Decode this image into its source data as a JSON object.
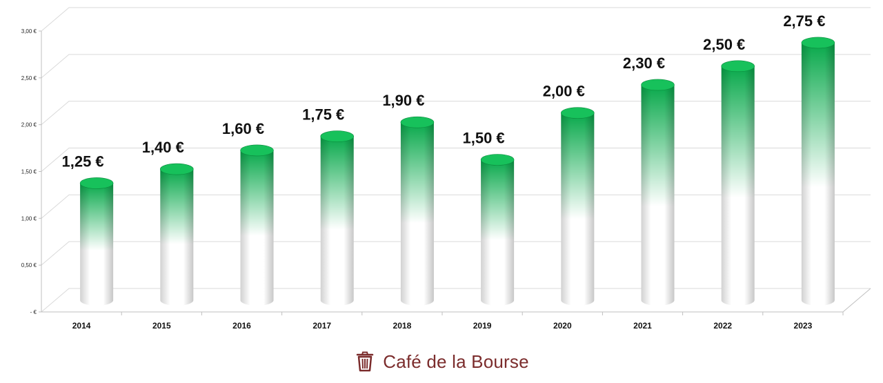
{
  "colors": {
    "bar_top": "#07a84a",
    "bar_cap": "#17c15b",
    "bar_bottom": "#ffffff",
    "brand": "#7b2c2c",
    "grid": "#d9d9d9"
  },
  "brand": {
    "name": "Café de la Bourse",
    "icon": "trash-can-logo-icon"
  },
  "chart_data": {
    "type": "bar",
    "style": "3d-cylinder",
    "categories": [
      "2014",
      "2015",
      "2016",
      "2017",
      "2018",
      "2019",
      "2020",
      "2021",
      "2022",
      "2023"
    ],
    "values": [
      1.25,
      1.4,
      1.6,
      1.75,
      1.9,
      1.5,
      2.0,
      2.3,
      2.5,
      2.75
    ],
    "value_labels": [
      "1,25 €",
      "1,40 €",
      "1,60 €",
      "1,75 €",
      "1,90 €",
      "1,50 €",
      "2,00 €",
      "2,30 €",
      "2,50 €",
      "2,75 €"
    ],
    "ylim": [
      0,
      3
    ],
    "yticks": [
      0,
      0.5,
      1.0,
      1.5,
      2.0,
      2.5,
      3.0
    ],
    "ytick_labels": [
      "- €",
      "0,50 €",
      "1,00 €",
      "1,50 €",
      "2,00 €",
      "2,50 €",
      "3,00 €"
    ],
    "grid": true,
    "legend": "none",
    "title": "",
    "xlabel": "",
    "ylabel": ""
  }
}
